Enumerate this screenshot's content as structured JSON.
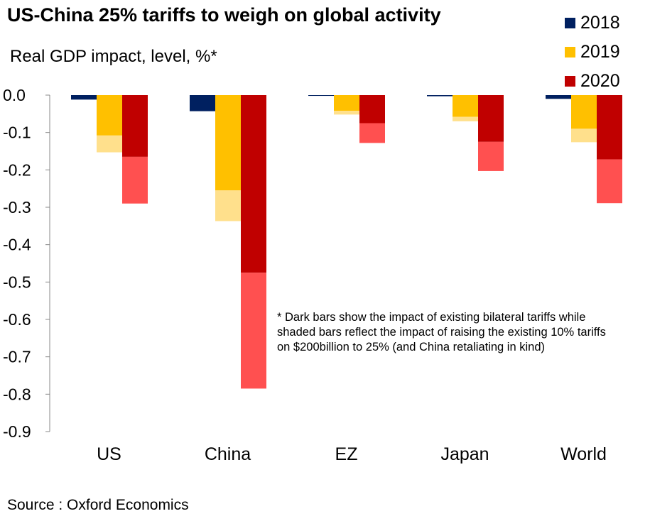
{
  "title": "US-China 25% tariffs to weigh on global activity",
  "subtitle": "Real GDP impact, level, %*",
  "note": "* Dark bars show the impact of existing bilateral tariffs while shaded bars reflect the impact of raising the existing 10% tariffs on $200billion to 25% (and China retaliating in kind)",
  "source": "Source : Oxford Economics",
  "chart_data": {
    "type": "bar",
    "stacked_segments": true,
    "categories": [
      "US",
      "China",
      "EZ",
      "Japan",
      "World"
    ],
    "ylim": [
      -0.9,
      0.0
    ],
    "yticks": [
      "0.0",
      "-0.1",
      "-0.2",
      "-0.3",
      "-0.4",
      "-0.5",
      "-0.6",
      "-0.7",
      "-0.8",
      "-0.9"
    ],
    "series": [
      {
        "name": "2018",
        "color": "#002060",
        "existing": [
          -0.012,
          -0.043,
          -0.002,
          -0.003,
          -0.01
        ],
        "additional": [
          0,
          0,
          0,
          0,
          0
        ]
      },
      {
        "name": "2019",
        "color": "#FFC000",
        "shaded_color": "#FFE08C",
        "existing": [
          -0.108,
          -0.255,
          -0.042,
          -0.058,
          -0.09
        ],
        "additional": [
          -0.045,
          -0.082,
          -0.01,
          -0.012,
          -0.036
        ]
      },
      {
        "name": "2020",
        "color": "#C00000",
        "shaded_color": "#FF5050",
        "existing": [
          -0.165,
          -0.475,
          -0.075,
          -0.125,
          -0.172
        ],
        "additional": [
          -0.125,
          -0.31,
          -0.053,
          -0.078,
          -0.117
        ]
      }
    ]
  }
}
